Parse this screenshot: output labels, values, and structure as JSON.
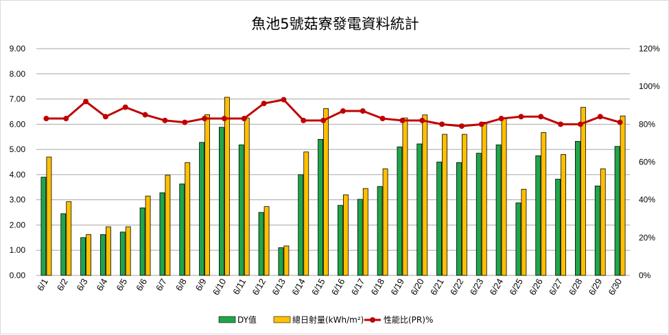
{
  "chart_data": {
    "type": "bar",
    "title": "魚池5號菇寮發電資料統計",
    "categories": [
      "6/1",
      "6/2",
      "6/3",
      "6/4",
      "6/5",
      "6/6",
      "6/7",
      "6/8",
      "6/9",
      "6/10",
      "6/11",
      "6/12",
      "6/13",
      "6/14",
      "6/15",
      "6/16",
      "6/17",
      "6/18",
      "6/19",
      "6/20",
      "6/21",
      "6/22",
      "6/23",
      "6/24",
      "6/25",
      "6/26",
      "6/27",
      "6/28",
      "6/29",
      "6/30"
    ],
    "series": [
      {
        "name": "DY值",
        "type": "bar",
        "axis": "left",
        "color": "#1fa64a",
        "values": [
          3.9,
          2.45,
          1.5,
          1.62,
          1.72,
          2.68,
          3.28,
          3.63,
          5.28,
          5.88,
          5.18,
          2.5,
          1.1,
          4.0,
          5.4,
          2.78,
          3.02,
          3.53,
          5.1,
          5.22,
          4.5,
          4.48,
          4.85,
          5.18,
          2.88,
          4.75,
          3.82,
          5.32,
          3.55,
          5.12
        ]
      },
      {
        "name": "總日射量(kWh/m²)",
        "type": "bar",
        "axis": "left",
        "color": "#ffc000",
        "values": [
          4.7,
          2.93,
          1.62,
          1.93,
          1.93,
          3.15,
          3.98,
          4.48,
          6.38,
          7.07,
          6.25,
          2.73,
          1.17,
          4.9,
          6.62,
          3.2,
          3.45,
          4.23,
          6.25,
          6.37,
          5.6,
          5.6,
          6.08,
          6.25,
          3.42,
          5.67,
          4.8,
          6.67,
          4.23,
          6.33
        ]
      },
      {
        "name": "性能比(PR)%",
        "type": "line",
        "axis": "right",
        "color": "#c00000",
        "values": [
          83,
          83,
          92,
          84,
          89,
          85,
          82,
          81,
          83,
          83,
          83,
          91,
          93,
          82,
          82,
          87,
          87,
          83,
          82,
          82,
          80,
          79,
          80,
          83,
          84,
          84,
          80,
          80,
          84,
          81
        ]
      }
    ],
    "ylim": [
      0,
      9
    ],
    "yticks": [
      "0.00",
      "1.00",
      "2.00",
      "3.00",
      "4.00",
      "5.00",
      "6.00",
      "7.00",
      "8.00",
      "9.00"
    ],
    "y2lim": [
      0,
      120
    ],
    "y2ticks": [
      "0%",
      "20%",
      "40%",
      "60%",
      "80%",
      "100%",
      "120%"
    ],
    "grid": true,
    "legend_position": "bottom"
  }
}
